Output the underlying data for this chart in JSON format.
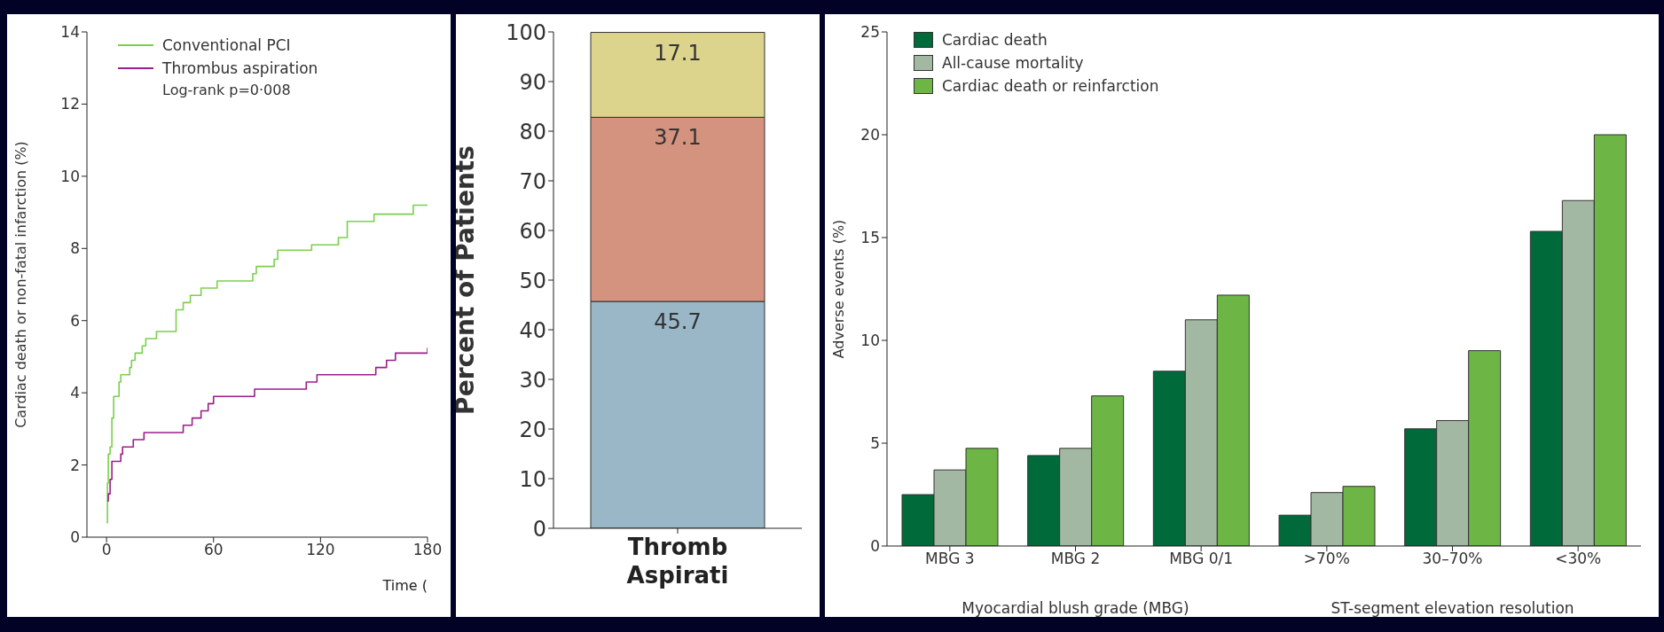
{
  "chart_data": [
    {
      "type": "step",
      "ylabel": "Cardiac death or non-fatal infarction (%)",
      "xlabel": "Time (",
      "xlim": [
        -11,
        180
      ],
      "xticks": [
        0,
        60,
        120,
        180
      ],
      "ylim": [
        0,
        14
      ],
      "yticks": [
        0,
        2,
        4,
        6,
        8,
        10,
        12,
        14
      ],
      "legend": "top left",
      "marker": "none",
      "line_style": "solid",
      "annotations": [
        "Log-rank p=0·008"
      ],
      "series": [
        {
          "name": "Conventional PCI",
          "color": "#7ccf4e",
          "x": [
            0,
            0.5,
            1,
            2,
            3,
            4,
            7,
            8,
            13,
            14,
            16,
            20,
            22,
            28,
            39,
            43,
            47,
            53,
            62,
            82,
            84,
            94,
            96,
            115,
            130,
            135,
            150,
            172,
            180
          ],
          "values": [
            0.4,
            1.5,
            2.3,
            2.5,
            3.3,
            3.9,
            4.3,
            4.5,
            4.7,
            4.9,
            5.1,
            5.3,
            5.5,
            5.7,
            6.3,
            6.5,
            6.7,
            6.9,
            7.1,
            7.3,
            7.5,
            7.7,
            7.95,
            8.1,
            8.3,
            8.75,
            8.95,
            9.2,
            9.2
          ]
        },
        {
          "name": "Thrombus aspiration",
          "color": "#9b1f8a",
          "x": [
            0.5,
            1,
            2,
            3,
            8,
            9,
            15,
            21,
            43,
            48,
            53,
            57,
            60,
            83,
            112,
            118,
            151,
            157,
            162,
            180
          ],
          "values": [
            1.0,
            1.2,
            1.6,
            2.1,
            2.3,
            2.5,
            2.7,
            2.9,
            3.1,
            3.3,
            3.5,
            3.7,
            3.9,
            4.1,
            4.3,
            4.5,
            4.7,
            4.9,
            5.1,
            5.25
          ]
        }
      ]
    },
    {
      "type": "bar",
      "stacked": true,
      "ylabel": "Percent of Patients",
      "categories": [
        "Thromb Aspirati"
      ],
      "ylim": [
        0,
        100
      ],
      "yticks": [
        0,
        10,
        20,
        30,
        40,
        50,
        60,
        70,
        80,
        90,
        100
      ],
      "data_labels": true,
      "series": [
        {
          "color": "#9ab7c7",
          "values": [
            45.7
          ]
        },
        {
          "color": "#d3937f",
          "values": [
            37.1
          ]
        },
        {
          "color": "#dcd48c",
          "values": [
            17.1
          ]
        }
      ]
    },
    {
      "type": "bar",
      "ylabel": "Adverse events (%)",
      "categories": [
        "MBG 3",
        "MBG 2",
        "MBG 0/1",
        ">70%",
        "30–70%",
        "<30%"
      ],
      "ylim": [
        0,
        25
      ],
      "yticks": [
        0,
        5,
        10,
        15,
        20,
        25
      ],
      "legend": "top left",
      "annotations": [
        "Myocardial blush grade (MBG)",
        "ST-segment elevation resolution"
      ],
      "series": [
        {
          "name": "Cardiac death",
          "color": "#006a3a",
          "values": [
            2.5,
            4.4,
            8.5,
            1.5,
            5.7,
            15.3
          ]
        },
        {
          "name": "All-cause mortality",
          "color": "#a3b8a2",
          "values": [
            3.7,
            4.75,
            11.0,
            2.6,
            6.1,
            16.8
          ]
        },
        {
          "name": "Cardiac death or reinfarction",
          "color": "#6db545",
          "values": [
            4.75,
            7.3,
            12.2,
            2.9,
            9.5,
            20.0
          ]
        }
      ]
    }
  ]
}
